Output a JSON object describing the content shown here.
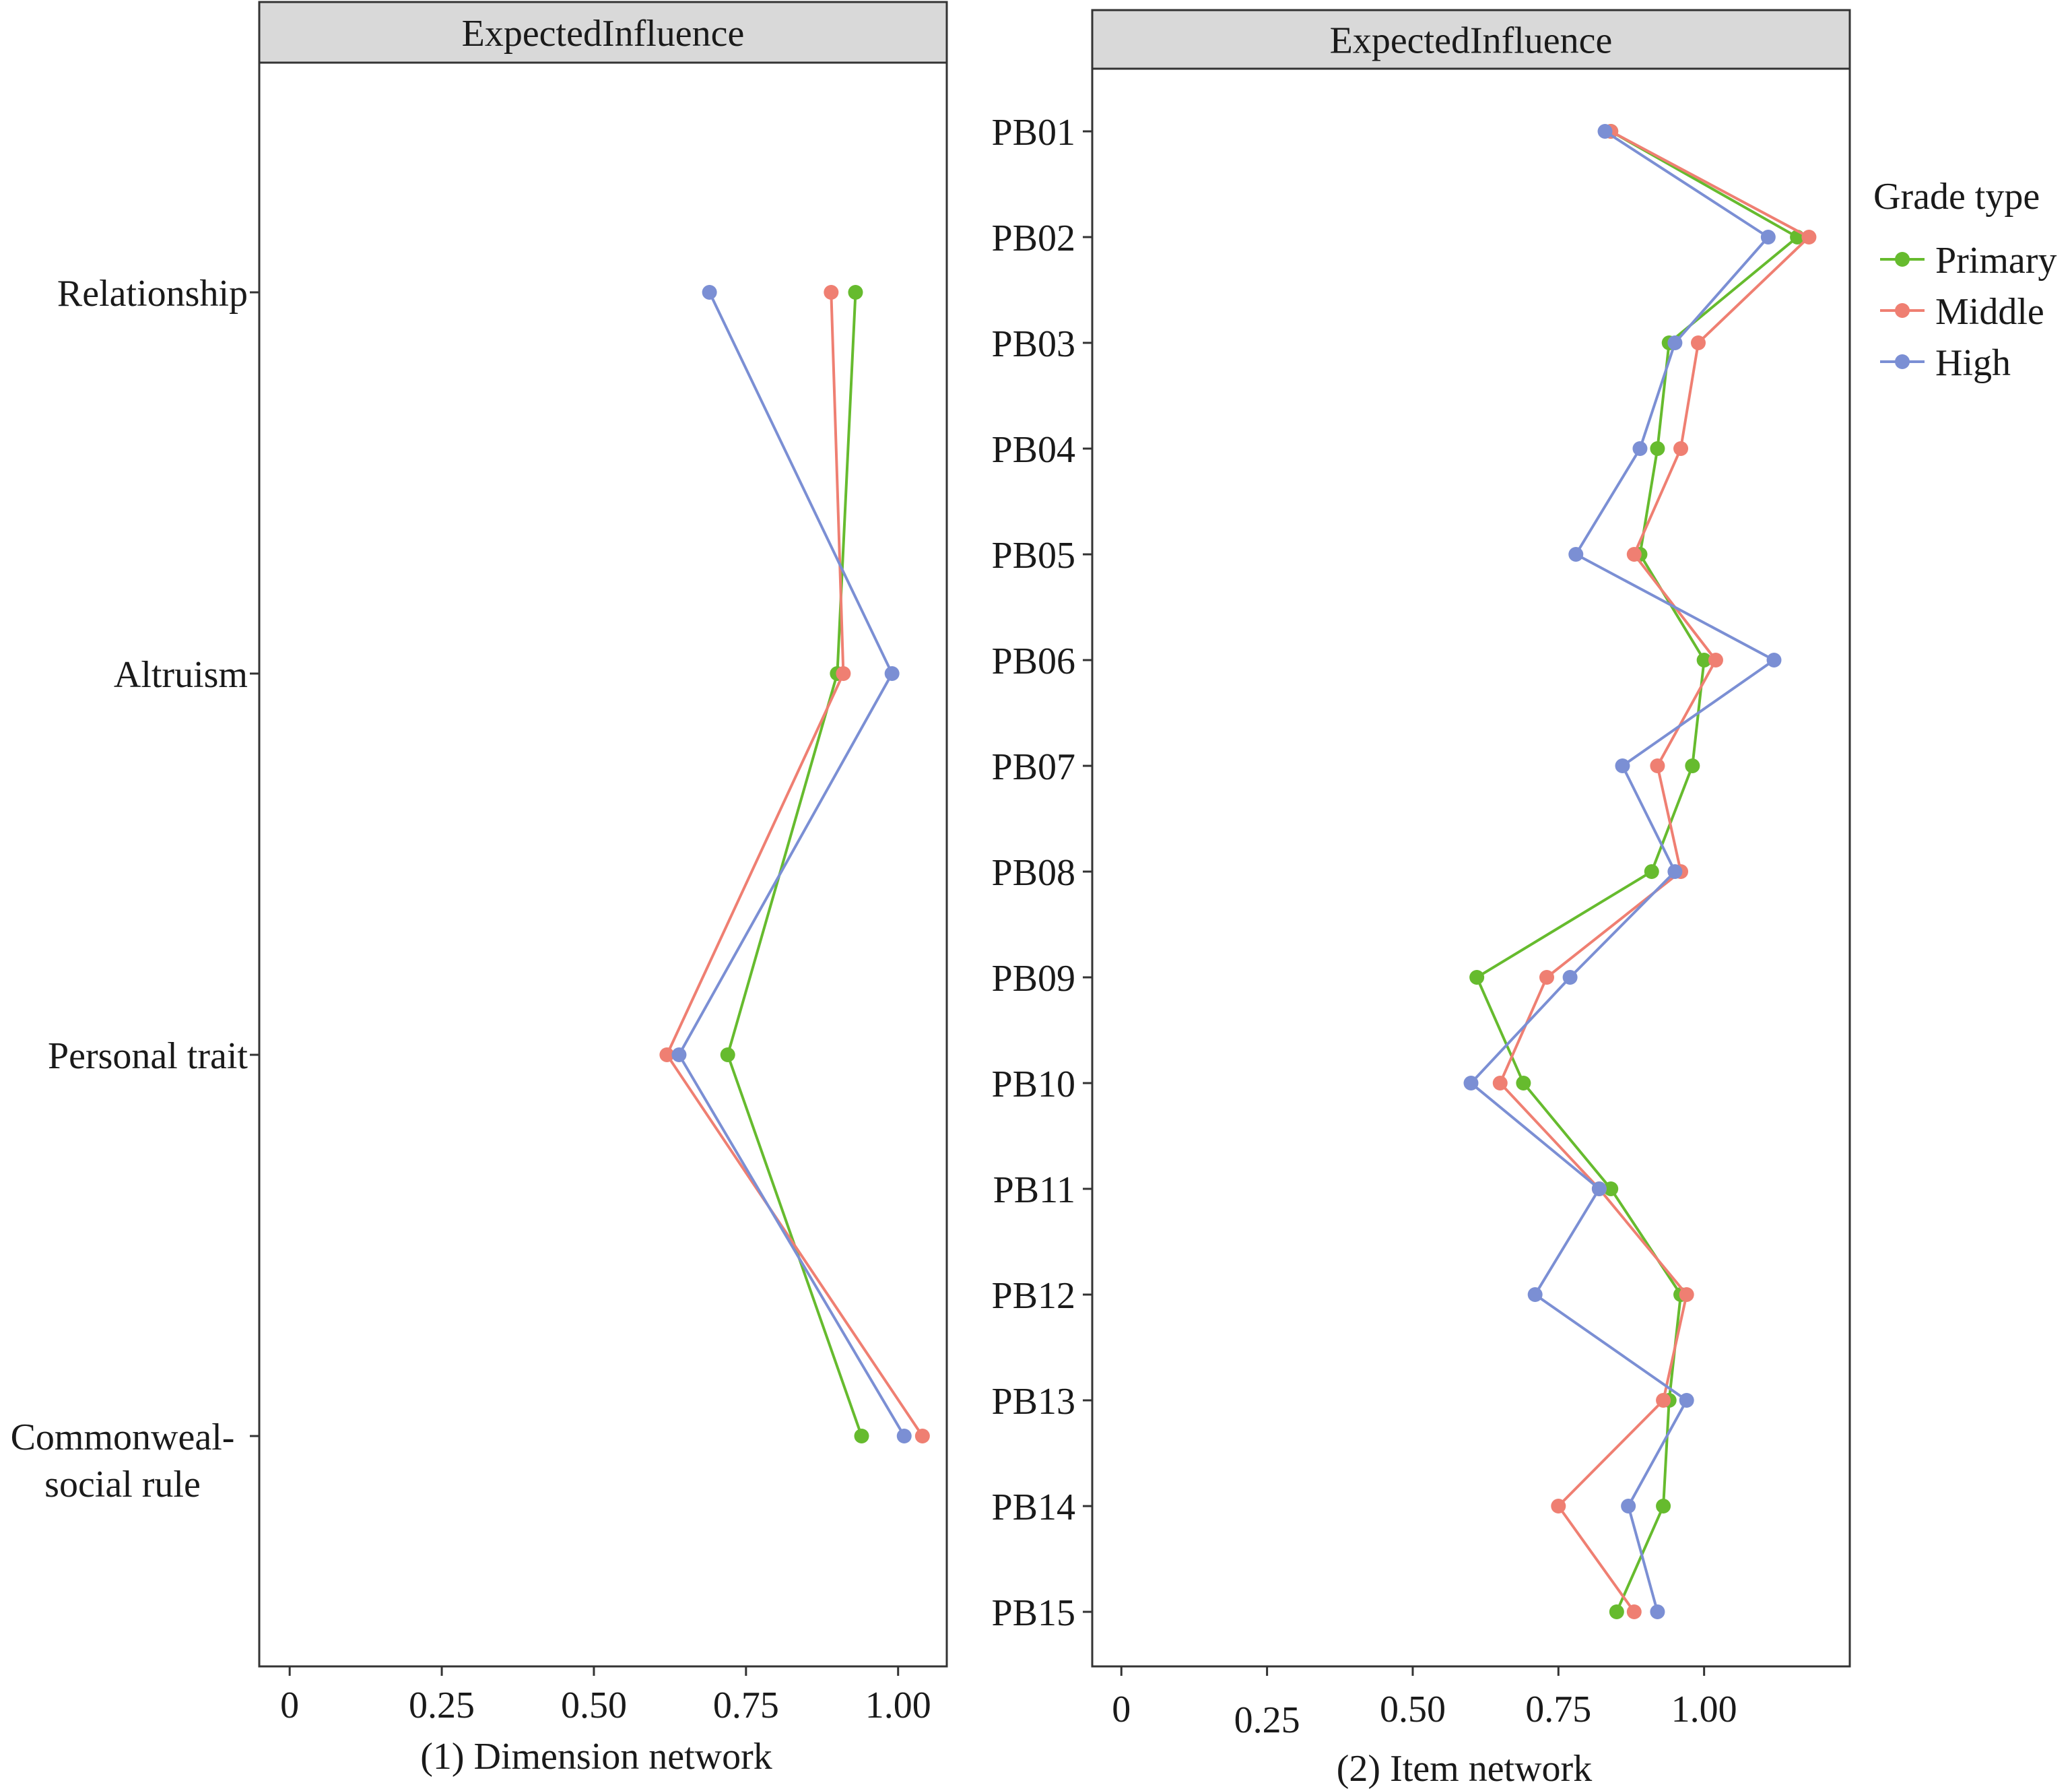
{
  "legend": {
    "title": "Grade type",
    "entries": [
      {
        "name": "Primary",
        "color": "#66bb2e"
      },
      {
        "name": "Middle",
        "color": "#ef7f72"
      },
      {
        "name": "High",
        "color": "#7b8fd4"
      }
    ]
  },
  "chart_data": [
    {
      "type": "line",
      "strip_title": "ExpectedInfluence",
      "xlabel": "(1) Dimension network",
      "xlim": [
        -0.05,
        1.08
      ],
      "xticks": [
        0,
        0.25,
        0.5,
        0.75,
        1.0
      ],
      "xtick_labels": [
        "0",
        "0.25",
        "0.50",
        "0.75",
        "1.00"
      ],
      "categories": [
        "Relationship",
        "Altruism",
        "Personal trait",
        "Commonweal-\nsocial rule"
      ],
      "series": [
        {
          "name": "Primary",
          "values": [
            0.93,
            0.9,
            0.72,
            0.94
          ]
        },
        {
          "name": "Middle",
          "values": [
            0.89,
            0.91,
            0.62,
            1.04
          ]
        },
        {
          "name": "High",
          "values": [
            0.69,
            0.99,
            0.64,
            1.01
          ]
        }
      ]
    },
    {
      "type": "line",
      "strip_title": "ExpectedInfluence",
      "xlabel": "(2) Item network",
      "xlim": [
        -0.05,
        1.25
      ],
      "xticks": [
        0,
        0.25,
        0.5,
        0.75,
        1.0
      ],
      "xtick_labels": [
        "0",
        "0.25",
        "0.50",
        "0.75",
        "1.00"
      ],
      "categories": [
        "PB01",
        "PB02",
        "PB03",
        "PB04",
        "PB05",
        "PB06",
        "PB07",
        "PB08",
        "PB09",
        "PB10",
        "PB11",
        "PB12",
        "PB13",
        "PB14",
        "PB15"
      ],
      "series": [
        {
          "name": "Primary",
          "values": [
            0.84,
            1.16,
            0.94,
            0.92,
            0.89,
            1.0,
            0.98,
            0.91,
            0.61,
            0.69,
            0.84,
            0.96,
            0.94,
            0.93,
            0.85
          ]
        },
        {
          "name": "Middle",
          "values": [
            0.84,
            1.18,
            0.99,
            0.96,
            0.88,
            1.02,
            0.92,
            0.96,
            0.73,
            0.65,
            0.82,
            0.97,
            0.93,
            0.75,
            0.88
          ]
        },
        {
          "name": "High",
          "values": [
            0.83,
            1.11,
            0.95,
            0.89,
            0.78,
            1.12,
            0.86,
            0.95,
            0.77,
            0.6,
            0.82,
            0.71,
            0.97,
            0.87,
            0.92
          ]
        }
      ]
    }
  ]
}
